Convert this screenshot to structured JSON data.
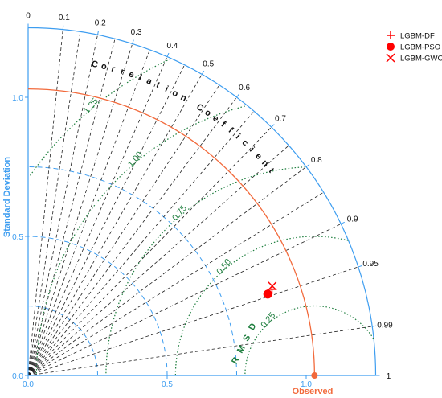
{
  "chart_data": {
    "type": "scatter",
    "subtype": "taylor-diagram",
    "title": "",
    "ylabel": "Standard Deviation",
    "arc_label": "Correlation Coefficient",
    "rms_label": "RMSD",
    "observed_label": "Observed",
    "std_range": [
      0,
      1.25
    ],
    "std_ticks": [
      {
        "value": 0.0,
        "label": "0.0"
      },
      {
        "value": 0.5,
        "label": "0.5"
      },
      {
        "value": 1.0,
        "label": "1.0"
      }
    ],
    "correlation_ticks": [
      {
        "value": 0,
        "label": "0"
      },
      {
        "value": 0.1,
        "label": "0.1"
      },
      {
        "value": 0.2,
        "label": "0.2"
      },
      {
        "value": 0.3,
        "label": "0.3"
      },
      {
        "value": 0.4,
        "label": "0.4"
      },
      {
        "value": 0.5,
        "label": "0.5"
      },
      {
        "value": 0.6,
        "label": "0.6"
      },
      {
        "value": 0.7,
        "label": "0.7"
      },
      {
        "value": 0.8,
        "label": "0.8"
      },
      {
        "value": 0.9,
        "label": "0.9"
      },
      {
        "value": 0.95,
        "label": "0.95"
      },
      {
        "value": 0.99,
        "label": "0.99"
      },
      {
        "value": 1,
        "label": "1"
      }
    ],
    "correlation_gridlines": [
      0.1,
      0.2,
      0.3,
      0.4,
      0.5,
      0.6,
      0.7,
      0.8,
      0.9,
      0.95,
      0.99,
      0.15,
      0.25,
      0.35,
      0.45,
      0.55,
      0.65,
      0.75,
      0.85
    ],
    "std_gridlines": [
      0.25,
      0.5,
      0.75,
      1.25
    ],
    "rms_contours": [
      {
        "value": 0.25,
        "label": "0.25"
      },
      {
        "value": 0.5,
        "label": "0.50"
      },
      {
        "value": 0.75,
        "label": "0.75"
      },
      {
        "value": 1.0,
        "label": "1.00"
      },
      {
        "value": 1.25,
        "label": "1.25"
      }
    ],
    "observed": {
      "std": 1.03,
      "correlation": 1
    },
    "series": [
      {
        "name": "LGBM-DF",
        "marker": "plus",
        "color": "#ff0000",
        "std": 0.93,
        "correlation": 0.943
      },
      {
        "name": "LGBM-PSO",
        "marker": "circle",
        "color": "#ff0000",
        "std": 0.91,
        "correlation": 0.947
      },
      {
        "name": "LGBM-GWO",
        "marker": "x",
        "color": "#ff0000",
        "std": 0.935,
        "correlation": 0.939
      }
    ],
    "legend_position": "top-right",
    "colors": {
      "axis": "#3d9df0",
      "observed": "#f26a3c",
      "rms": "#1e7e3e",
      "correlation": "#222222"
    }
  }
}
